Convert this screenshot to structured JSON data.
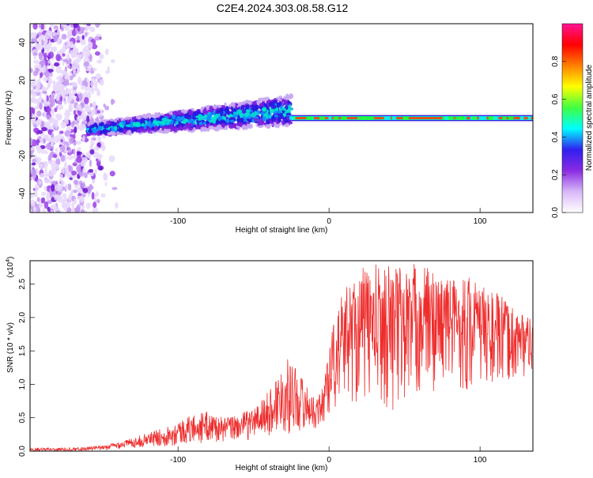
{
  "title": "C2E4.2024.303.08.58.G12",
  "charts": [
    {
      "chart_data": {
        "type": "heatmap",
        "xlabel": "Height of straight line (km)",
        "ylabel": "Frequency (Hz)",
        "xlim": [
          -198,
          135
        ],
        "ylim": [
          -50,
          50
        ],
        "x_ticks": [
          -100,
          0,
          100
        ],
        "y_ticks": [
          -40,
          -20,
          0,
          20,
          40
        ],
        "colorbar": {
          "label": "Normalized spectral amplitude",
          "range": [
            0,
            1
          ],
          "ticks": [
            "0.0",
            "0.2",
            "0.4",
            "0.6",
            "0.8"
          ],
          "colors": [
            "#ffffff",
            "#d8b8f8",
            "#8a2be2",
            "#3020f0",
            "#00ffff",
            "#40ff40",
            "#ffff00",
            "#ff8000",
            "#ff0000",
            "#ff1493"
          ]
        },
        "regions": [
          {
            "name": "noise",
            "x": [
              -198,
              -140
            ],
            "y": [
              -50,
              50
            ],
            "amplitude": 0.2
          },
          {
            "name": "drift",
            "x": [
              -160,
              -25
            ],
            "freq_start": -6,
            "freq_end": 4,
            "amplitude": 0.45
          },
          {
            "name": "carrier",
            "x": [
              -25,
              135
            ],
            "freq": 0,
            "amplitude": 0.95
          }
        ]
      }
    },
    {
      "chart_data": {
        "type": "line",
        "xlabel": "Height of straight line (km)",
        "ylabel": "SNR (10 * v/v)",
        "scale_label": "(x10",
        "scale_exp": "4",
        "scale_close": ")",
        "xlim": [
          -198,
          135
        ],
        "ylim": [
          0,
          28500
        ],
        "x_ticks": [
          -100,
          0,
          100
        ],
        "y_ticks": [
          "0.0",
          "0.5",
          "1.0",
          "1.5",
          "2.0",
          "2.5"
        ],
        "y_tick_values": [
          0,
          5000,
          10000,
          15000,
          20000,
          25000
        ],
        "series": [
          {
            "color": "#ee2c2c",
            "x": [
              -198,
              -175,
              -150,
              -130,
              -110,
              -90,
              -80,
              -70,
              -60,
              -50,
              -40,
              -30,
              -25,
              -20,
              -15,
              -10,
              -5,
              0,
              5,
              10,
              20,
              30,
              40,
              50,
              60,
              70,
              80,
              90,
              100,
              110,
              120,
              130,
              135
            ],
            "envelope_low": [
              0,
              0,
              100,
              500,
              700,
              1000,
              1200,
              1300,
              1500,
              1700,
              2000,
              2500,
              2500,
              2800,
              3000,
              3500,
              3000,
              5000,
              6000,
              8000,
              7000,
              7000,
              6000,
              6000,
              8000,
              9000,
              11000,
              8000,
              10000,
              9000,
              10000,
              11000,
              12000
            ],
            "envelope_high": [
              500,
              500,
              800,
              2000,
              3500,
              5500,
              6000,
              5000,
              5500,
              6500,
              9000,
              13500,
              14000,
              12000,
              10000,
              8000,
              9000,
              17000,
              21000,
              24500,
              27500,
              28000,
              28500,
              28000,
              28500,
              27000,
              26000,
              27000,
              25000,
              24000,
              22000,
              21000,
              19000
            ]
          }
        ]
      }
    }
  ]
}
